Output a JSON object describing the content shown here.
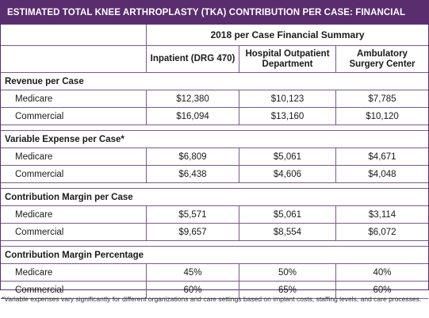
{
  "title": "ESTIMATED TOTAL KNEE ARTHROPLASTY (TKA) CONTRIBUTION PER CASE: FINANCIAL SUMMARY",
  "table": {
    "group_header": "2018 per Case Financial Summary",
    "columns": [
      "Inpatient (DRG 470)",
      "Hospital Outpatient Department",
      "Ambulatory Surgery Center"
    ],
    "sections": [
      {
        "label": "Revenue per Case",
        "rows": [
          {
            "label": "Medicare",
            "values": [
              "$12,380",
              "$10,123",
              "$7,785"
            ]
          },
          {
            "label": "Commercial",
            "values": [
              "$16,094",
              "$13,160",
              "$10,120"
            ]
          }
        ]
      },
      {
        "label": "Variable Expense per Case*",
        "rows": [
          {
            "label": "Medicare",
            "values": [
              "$6,809",
              "$5,061",
              "$4,671"
            ]
          },
          {
            "label": "Commercial",
            "values": [
              "$6,438",
              "$4,606",
              "$4,048"
            ]
          }
        ]
      },
      {
        "label": "Contribution Margin per Case",
        "rows": [
          {
            "label": "Medicare",
            "values": [
              "$5,571",
              "$5,061",
              "$3,114"
            ]
          },
          {
            "label": "Commercial",
            "values": [
              "$9,657",
              "$8,554",
              "$6,072"
            ]
          }
        ]
      },
      {
        "label": "Contribution Margin Percentage",
        "rows": [
          {
            "label": "Medicare",
            "values": [
              "45%",
              "50%",
              "40%"
            ]
          },
          {
            "label": "Commercial",
            "values": [
              "60%",
              "65%",
              "60%"
            ]
          }
        ]
      }
    ]
  },
  "footnote": "*Variable expenses vary significantly for different organizations and care settings based on implant costs, staffing levels, and care processes.",
  "colors": {
    "title_bar": "#5a2d6e",
    "rule": "#7a5a8a"
  }
}
